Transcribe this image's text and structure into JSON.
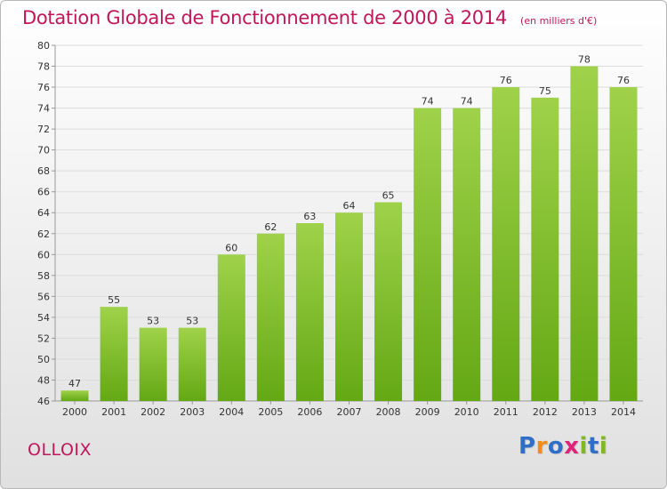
{
  "title": "Dotation Globale de Fonctionnement de 2000 à 2014",
  "subtitle": "(en milliers d'€)",
  "place": "OLLOIX",
  "logo": {
    "text": "Proxiti",
    "letter_colors": [
      "#2f6fc7",
      "#f08c1e",
      "#2f6fc7",
      "#e0237a",
      "#7fb820",
      "#2f6fc7",
      "#7fb820"
    ]
  },
  "colors": {
    "title": "#c0175a",
    "bar_light": "#9fd24a",
    "bar_dark": "#64a814",
    "grid": "#dcdcdc"
  },
  "chart_data": {
    "type": "bar",
    "categories": [
      "2000",
      "2001",
      "2002",
      "2003",
      "2004",
      "2005",
      "2006",
      "2007",
      "2008",
      "2009",
      "2010",
      "2011",
      "2012",
      "2013",
      "2014"
    ],
    "values": [
      47,
      55,
      53,
      53,
      60,
      62,
      63,
      64,
      65,
      74,
      74,
      76,
      75,
      78,
      76
    ],
    "ylim": [
      46,
      80
    ],
    "yticks": [
      46,
      48,
      50,
      52,
      54,
      56,
      58,
      60,
      62,
      64,
      66,
      68,
      70,
      72,
      74,
      76,
      78,
      80
    ],
    "grid": true,
    "data_labels": true
  }
}
